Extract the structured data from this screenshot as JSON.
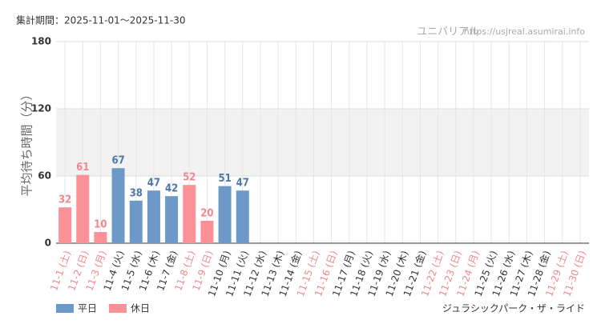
{
  "chart_data": {
    "type": "bar",
    "title": "集計期間：2025-11-01〜2025-11-30",
    "source": "ユニバリアル",
    "source_url": "https://usjreal.asumirai.info",
    "y_label": "平均待ち時間（分）",
    "footer": "ジュラシックパーク・ザ・ライド",
    "categories": [
      "11-1 (土)",
      "11-2 (日)",
      "11-3 (月)",
      "11-4 (火)",
      "11-5 (水)",
      "11-6 (木)",
      "11-7 (金)",
      "11-8 (土)",
      "11-9 (日)",
      "11-10 (月)",
      "11-11 (火)",
      "11-12 (水)",
      "11-13 (木)",
      "11-14 (金)",
      "11-15 (土)",
      "11-16 (日)",
      "11-17 (月)",
      "11-18 (火)",
      "11-19 (水)",
      "11-20 (木)",
      "11-21 (金)",
      "11-22 (土)",
      "11-23 (日)",
      "11-24 (月)",
      "11-25 (火)",
      "11-26 (水)",
      "11-27 (木)",
      "11-28 (金)",
      "11-29 (土)",
      "11-30 (日)"
    ],
    "category_label_colors": [
      "#f0878e",
      "#f0878e",
      "#f0878e",
      "#333333",
      "#333333",
      "#333333",
      "#333333",
      "#f0878e",
      "#f0878e",
      "#333333",
      "#333333",
      "#333333",
      "#333333",
      "#333333",
      "#f0878e",
      "#f0878e",
      "#333333",
      "#333333",
      "#333333",
      "#333333",
      "#333333",
      "#f0878e",
      "#f0878e",
      "#f0878e",
      "#333333",
      "#333333",
      "#333333",
      "#333333",
      "#f0878e",
      "#f0878e"
    ],
    "series": [
      {
        "name": "平日",
        "color": "#6c99c7",
        "label_color": "#4a78a8",
        "values": [
          null,
          null,
          null,
          67,
          38,
          47,
          42,
          null,
          null,
          51,
          47,
          null,
          null,
          null,
          null,
          null,
          null,
          null,
          null,
          null,
          null,
          null,
          null,
          null,
          null,
          null,
          null,
          null,
          null,
          null
        ]
      },
      {
        "name": "休日",
        "color": "#fb9197",
        "label_color": "#f0878e",
        "values": [
          32,
          61,
          10,
          null,
          null,
          null,
          null,
          52,
          20,
          null,
          null,
          null,
          null,
          null,
          null,
          null,
          null,
          null,
          null,
          null,
          null,
          null,
          null,
          null,
          null,
          null,
          null,
          null,
          null,
          null
        ]
      }
    ],
    "ylim": [
      0,
      180
    ],
    "yticks": [
      0,
      60,
      120,
      180
    ],
    "grid": true
  }
}
